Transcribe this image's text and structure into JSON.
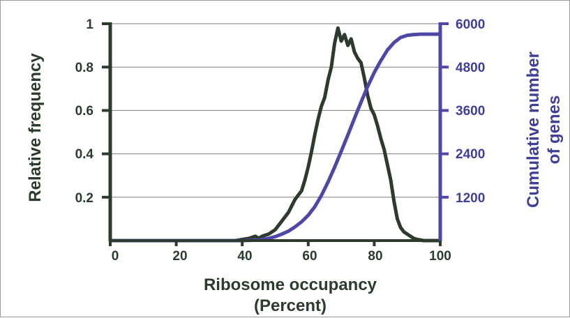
{
  "chart_data": {
    "type": "line",
    "xlabel_line1": "Ribosome occupancy",
    "xlabel_line2": "(Percent)",
    "ylabel_left": "Relative frequency",
    "ylabel_right_line1": "Cumulative number",
    "ylabel_right_line2": "of genes",
    "xlim": [
      0,
      100
    ],
    "ylim_left": [
      0,
      1
    ],
    "ylim_right": [
      0,
      6000
    ],
    "x_ticks": [
      "0",
      "20",
      "40",
      "60",
      "80",
      "100"
    ],
    "left_ticks": [
      "0.2",
      "0.4",
      "0.6",
      "0.8",
      "1"
    ],
    "right_ticks": [
      "1200",
      "2400",
      "3600",
      "4800",
      "6000"
    ],
    "grid": true,
    "series": [
      {
        "axis": "left",
        "color": "#2d3b2f",
        "x": [
          0,
          20,
          38,
          40,
          42,
          44,
          45,
          46,
          48,
          50,
          52,
          54,
          56,
          58,
          59,
          60,
          61,
          62,
          63,
          64,
          65,
          66,
          67,
          68,
          69,
          70,
          71,
          72,
          73,
          74,
          75,
          76,
          77,
          78,
          79,
          80,
          81,
          82,
          83,
          84,
          85,
          86,
          87,
          88,
          89,
          90,
          91,
          92,
          93,
          95,
          100
        ],
        "y": [
          0,
          0,
          0,
          0.005,
          0.01,
          0.02,
          0.01,
          0.02,
          0.03,
          0.05,
          0.09,
          0.13,
          0.19,
          0.23,
          0.28,
          0.34,
          0.41,
          0.49,
          0.56,
          0.62,
          0.66,
          0.74,
          0.8,
          0.91,
          0.98,
          0.92,
          0.95,
          0.9,
          0.93,
          0.87,
          0.84,
          0.82,
          0.75,
          0.67,
          0.61,
          0.58,
          0.53,
          0.47,
          0.42,
          0.35,
          0.28,
          0.18,
          0.1,
          0.06,
          0.04,
          0.03,
          0.02,
          0.01,
          0.005,
          0,
          0
        ]
      },
      {
        "axis": "right",
        "color": "#4d48a8",
        "x": [
          0,
          40,
          45,
          48,
          50,
          52,
          54,
          56,
          58,
          60,
          62,
          64,
          66,
          68,
          70,
          72,
          74,
          76,
          78,
          80,
          82,
          84,
          86,
          88,
          90,
          92,
          94,
          96,
          100
        ],
        "y": [
          0,
          0,
          15,
          60,
          110,
          180,
          260,
          380,
          520,
          700,
          940,
          1250,
          1620,
          2030,
          2470,
          2920,
          3380,
          3830,
          4260,
          4650,
          4980,
          5270,
          5480,
          5620,
          5680,
          5700,
          5710,
          5710,
          5710
        ]
      }
    ]
  }
}
